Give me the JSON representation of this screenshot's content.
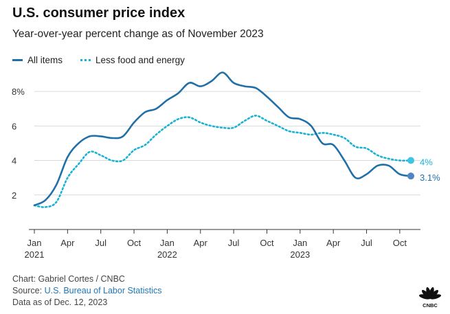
{
  "title": "U.S. consumer price index",
  "subtitle": "Year-over-year percent change as of November 2023",
  "footer": {
    "credit": "Chart: Gabriel Cortes / CNBC",
    "source_prefix": "Source: ",
    "source_link": "U.S. Bureau of Labor Statistics",
    "data_date": "Data as of Dec. 12, 2023"
  },
  "logo": {
    "text": "CNBC",
    "icon": "peacock-icon"
  },
  "colors": {
    "all_items": "#1f6fa8",
    "core": "#17b3d3",
    "end_all": "#4f86c2",
    "end_core": "#3cc4e3"
  },
  "chart_data": {
    "type": "line",
    "title": "U.S. consumer price index",
    "subtitle": "Year-over-year percent change as of November 2023",
    "xlabel": "",
    "ylabel": "",
    "ylim": [
      0,
      9
    ],
    "yticks": [
      2,
      4,
      6,
      8
    ],
    "ytick_labels": [
      "2",
      "4",
      "6",
      "8%"
    ],
    "grid": "horizontal",
    "legend_position": "top-left",
    "xticks": [
      {
        "month": "2021-01",
        "label": "Jan",
        "year": "2021"
      },
      {
        "month": "2021-04",
        "label": "Apr",
        "year": ""
      },
      {
        "month": "2021-07",
        "label": "Jul",
        "year": ""
      },
      {
        "month": "2021-10",
        "label": "Oct",
        "year": ""
      },
      {
        "month": "2022-01",
        "label": "Jan",
        "year": "2022"
      },
      {
        "month": "2022-04",
        "label": "Apr",
        "year": ""
      },
      {
        "month": "2022-07",
        "label": "Jul",
        "year": ""
      },
      {
        "month": "2022-10",
        "label": "Oct",
        "year": ""
      },
      {
        "month": "2023-01",
        "label": "Jan",
        "year": "2023"
      },
      {
        "month": "2023-04",
        "label": "Apr",
        "year": ""
      },
      {
        "month": "2023-07",
        "label": "Jul",
        "year": ""
      },
      {
        "month": "2023-10",
        "label": "Oct",
        "year": ""
      }
    ],
    "x": [
      "2021-01",
      "2021-02",
      "2021-03",
      "2021-04",
      "2021-05",
      "2021-06",
      "2021-07",
      "2021-08",
      "2021-09",
      "2021-10",
      "2021-11",
      "2021-12",
      "2022-01",
      "2022-02",
      "2022-03",
      "2022-04",
      "2022-05",
      "2022-06",
      "2022-07",
      "2022-08",
      "2022-09",
      "2022-10",
      "2022-11",
      "2022-12",
      "2023-01",
      "2023-02",
      "2023-03",
      "2023-04",
      "2023-05",
      "2023-06",
      "2023-07",
      "2023-08",
      "2023-09",
      "2023-10",
      "2023-11"
    ],
    "series": [
      {
        "name": "All items",
        "end_label": "3.1%",
        "values": [
          1.4,
          1.7,
          2.6,
          4.2,
          5.0,
          5.4,
          5.4,
          5.3,
          5.4,
          6.2,
          6.8,
          7.0,
          7.5,
          7.9,
          8.5,
          8.3,
          8.6,
          9.1,
          8.5,
          8.3,
          8.2,
          7.7,
          7.1,
          6.5,
          6.4,
          6.0,
          5.0,
          4.9,
          4.0,
          3.0,
          3.2,
          3.7,
          3.7,
          3.2,
          3.1
        ]
      },
      {
        "name": "Less food and energy",
        "end_label": "4%",
        "values": [
          1.4,
          1.3,
          1.6,
          3.0,
          3.8,
          4.5,
          4.3,
          4.0,
          4.0,
          4.6,
          4.9,
          5.5,
          6.0,
          6.4,
          6.5,
          6.2,
          6.0,
          5.9,
          5.9,
          6.3,
          6.6,
          6.3,
          6.0,
          5.7,
          5.6,
          5.5,
          5.6,
          5.5,
          5.3,
          4.8,
          4.7,
          4.3,
          4.1,
          4.0,
          4.0
        ]
      }
    ]
  }
}
